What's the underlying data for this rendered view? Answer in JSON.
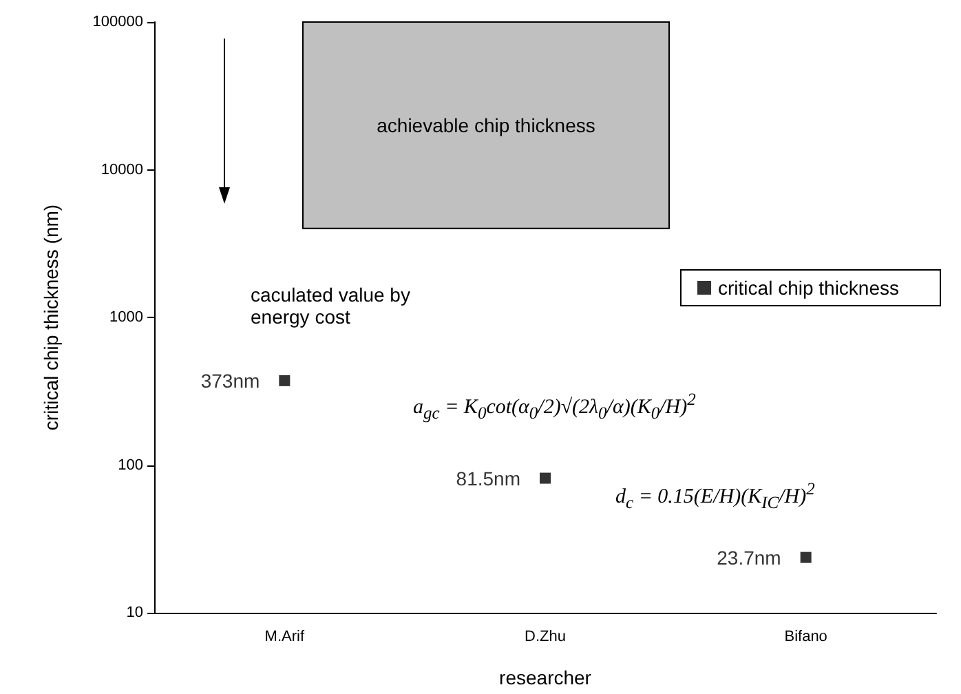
{
  "chart_data": {
    "type": "scatter",
    "xlabel": "researcher",
    "ylabel": "critical chip thickness (nm)",
    "categories": [
      "M.Arif",
      "D.Zhu",
      "Bifano"
    ],
    "series": [
      {
        "name": "critical chip thickness",
        "color": "#000000",
        "values": [
          373,
          81.5,
          23.7
        ],
        "value_labels": [
          "373nm",
          "81.5nm",
          "23.7nm"
        ]
      }
    ],
    "ylim": [
      10,
      100000
    ],
    "yticks": [
      10,
      100,
      1000,
      10000,
      100000
    ],
    "log": "y",
    "marker": "square",
    "legend": "right",
    "grid": false,
    "bands": [
      {
        "axis": "y",
        "from": 4000,
        "to": 100000,
        "label": "achievable chip thickness",
        "color": "#c0c0c0"
      }
    ],
    "annotations": [
      "caculated value by energy cost",
      "a$_{gc}$ = K$_{0}$cot(α$_{0}$/2)√(2λ$_{0}$/α)(K$_{0}$/H)$^{2}$",
      "d$_{c}$ = 0.15(E/H)(K$_{IC}$/H)$^{2}$"
    ]
  }
}
